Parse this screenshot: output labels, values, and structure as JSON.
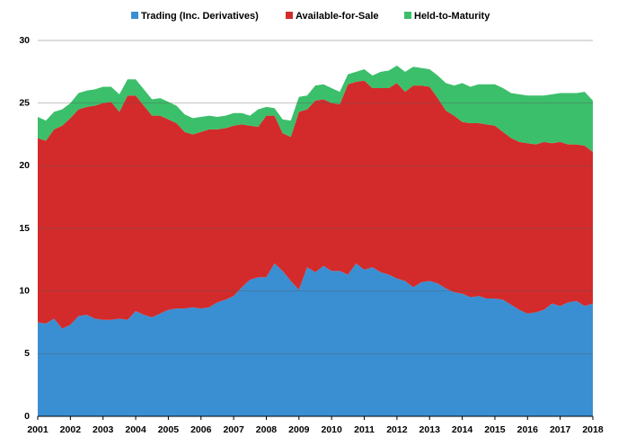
{
  "chart_data": {
    "type": "stacked_area",
    "legend": "top",
    "grid": true,
    "x": [
      2001,
      2001.25,
      2001.5,
      2001.75,
      2002,
      2002.25,
      2002.5,
      2002.75,
      2003,
      2003.25,
      2003.5,
      2003.75,
      2004,
      2004.25,
      2004.5,
      2004.75,
      2005,
      2005.25,
      2005.5,
      2005.75,
      2006,
      2006.25,
      2006.5,
      2006.75,
      2007,
      2007.25,
      2007.5,
      2007.75,
      2008,
      2008.25,
      2008.5,
      2008.75,
      2009,
      2009.25,
      2009.5,
      2009.75,
      2010,
      2010.25,
      2010.5,
      2010.75,
      2011,
      2011.25,
      2011.5,
      2011.75,
      2012,
      2012.25,
      2012.5,
      2012.75,
      2013,
      2013.25,
      2013.5,
      2013.75,
      2014,
      2014.25,
      2014.5,
      2014.75,
      2015,
      2015.25,
      2015.5,
      2015.75,
      2016,
      2016.25,
      2016.5,
      2016.75,
      2017,
      2017.25,
      2017.5,
      2017.75,
      2018
    ],
    "xlim": [
      2001,
      2018
    ],
    "xticks": [
      2001,
      2002,
      2003,
      2004,
      2005,
      2006,
      2007,
      2008,
      2009,
      2010,
      2011,
      2012,
      2013,
      2014,
      2015,
      2016,
      2017,
      2018
    ],
    "ylim": [
      0,
      30
    ],
    "yticks": [
      0,
      5,
      10,
      15,
      20,
      25,
      30
    ],
    "series": [
      {
        "name": "Trading (Inc. Derivatives)",
        "color": "#3a8fd2",
        "values": [
          7.5,
          7.4,
          7.8,
          7.0,
          7.3,
          8.0,
          8.1,
          7.8,
          7.7,
          7.7,
          7.8,
          7.7,
          8.4,
          8.1,
          7.9,
          8.2,
          8.5,
          8.6,
          8.6,
          8.7,
          8.6,
          8.7,
          9.1,
          9.3,
          9.6,
          10.3,
          10.9,
          11.1,
          11.1,
          12.2,
          11.6,
          10.8,
          10.1,
          11.9,
          11.5,
          12.0,
          11.6,
          11.6,
          11.3,
          12.2,
          11.7,
          11.9,
          11.5,
          11.3,
          11.0,
          10.8,
          10.3,
          10.7,
          10.8,
          10.6,
          10.2,
          9.9,
          9.8,
          9.5,
          9.6,
          9.4,
          9.4,
          9.3,
          8.9,
          8.5,
          8.2,
          8.3,
          8.5,
          9.0,
          8.8,
          9.1,
          9.2,
          8.8,
          9.0
        ]
      },
      {
        "name": "Available-for-Sale",
        "color": "#d32b2b",
        "values": [
          14.7,
          14.6,
          15.1,
          16.2,
          16.5,
          16.5,
          16.6,
          17.0,
          17.3,
          17.4,
          16.5,
          17.9,
          17.2,
          16.7,
          16.1,
          15.8,
          15.2,
          14.8,
          14.1,
          13.8,
          14.1,
          14.2,
          13.8,
          13.7,
          13.6,
          13.0,
          12.3,
          12.0,
          12.9,
          11.8,
          11.0,
          11.5,
          14.2,
          12.6,
          13.7,
          13.3,
          13.4,
          13.3,
          15.2,
          14.5,
          15.1,
          14.3,
          14.7,
          14.9,
          15.6,
          15.1,
          16.1,
          15.7,
          15.5,
          14.8,
          14.2,
          14.1,
          13.7,
          13.9,
          13.8,
          13.9,
          13.8,
          13.4,
          13.3,
          13.4,
          13.6,
          13.4,
          13.4,
          12.8,
          13.1,
          12.6,
          12.5,
          12.8,
          12.1
        ]
      },
      {
        "name": "Held-to-Maturity",
        "color": "#3cbf6b",
        "values": [
          1.7,
          1.6,
          1.4,
          1.3,
          1.2,
          1.3,
          1.3,
          1.3,
          1.3,
          1.2,
          1.4,
          1.3,
          1.3,
          1.3,
          1.3,
          1.4,
          1.4,
          1.4,
          1.4,
          1.3,
          1.2,
          1.1,
          1.0,
          1.0,
          1.0,
          0.9,
          0.8,
          1.4,
          0.7,
          0.6,
          1.1,
          1.3,
          1.2,
          1.1,
          1.2,
          1.2,
          1.2,
          1.0,
          0.8,
          0.8,
          0.9,
          1.0,
          1.3,
          1.4,
          1.4,
          1.6,
          1.5,
          1.4,
          1.4,
          1.8,
          2.2,
          2.4,
          3.1,
          2.9,
          3.1,
          3.2,
          3.3,
          3.5,
          3.6,
          3.8,
          3.8,
          3.9,
          3.7,
          3.9,
          3.9,
          4.1,
          4.1,
          4.3,
          4.1
        ]
      }
    ]
  }
}
